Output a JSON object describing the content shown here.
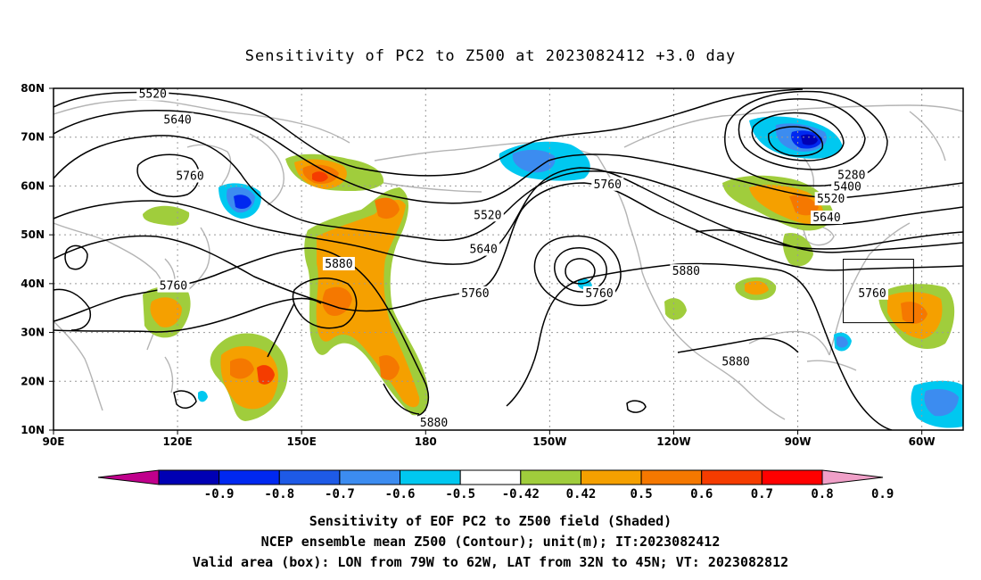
{
  "title": "Sensitivity of PC2 to Z500 at 2023082412 +3.0 day",
  "map": {
    "lon_range": [
      "90E",
      "50W"
    ],
    "lat_range": [
      "10N",
      "80N"
    ],
    "grid": "dotted",
    "lat_labels": [
      "80N",
      "70N",
      "60N",
      "50N",
      "40N",
      "30N",
      "20N",
      "10N"
    ],
    "lon_labels": [
      "90E",
      "120E",
      "150E",
      "180",
      "150W",
      "120W",
      "90W",
      "60W"
    ],
    "contour_labels": [
      {
        "text": "5520",
        "lon": 114,
        "lat": 78.8
      },
      {
        "text": "5640",
        "lon": 120,
        "lat": 73.5
      },
      {
        "text": "5760",
        "lon": 123,
        "lat": 62.0
      },
      {
        "text": "5760",
        "lon": 119,
        "lat": 39.5
      },
      {
        "text": "5880",
        "lon": 159,
        "lat": 44.0
      },
      {
        "text": "5520",
        "lon": 195,
        "lat": 54.0
      },
      {
        "text": "5640",
        "lon": 194,
        "lat": 47.0
      },
      {
        "text": "5760",
        "lon": 192,
        "lat": 38.0
      },
      {
        "text": "5760",
        "lon": 224,
        "lat": 60.3
      },
      {
        "text": "5760",
        "lon": 222,
        "lat": 38.0
      },
      {
        "text": "5880",
        "lon": 243,
        "lat": 42.5
      },
      {
        "text": "5880",
        "lon": 255,
        "lat": 24.0
      },
      {
        "text": "5880",
        "lon": 182,
        "lat": 11.5
      },
      {
        "text": "5280",
        "lon": 283,
        "lat": 62.2
      },
      {
        "text": "5400",
        "lon": 282,
        "lat": 59.8
      },
      {
        "text": "5520",
        "lon": 278,
        "lat": 57.3
      },
      {
        "text": "5640",
        "lon": 277,
        "lat": 53.5
      },
      {
        "text": "5760",
        "lon": 288,
        "lat": 38.0
      }
    ],
    "valid_box": {
      "lon_min": -79,
      "lon_max": -62,
      "lat_min": 32,
      "lat_max": 45
    }
  },
  "colorbar": {
    "labels": [
      "-0.9",
      "-0.8",
      "-0.7",
      "-0.6",
      "-0.5",
      "-0.42",
      "0.42",
      "0.5",
      "0.6",
      "0.7",
      "0.8",
      "0.9"
    ],
    "colors": [
      "#c0008c",
      "#0000b4",
      "#0028f0",
      "#1e5ae6",
      "#3c8cf0",
      "#00c8f0",
      "#ffffff",
      "#a0cd3c",
      "#f5a000",
      "#f57800",
      "#f53c00",
      "#ff0000",
      "#f0a0c8"
    ]
  },
  "footer": {
    "line1": "Sensitivity of EOF PC2 to Z500 field (Shaded)",
    "line2": "NCEP ensemble mean Z500 (Contour); unit(m); IT:2023082412",
    "line3": "Valid area (box): LON from 79W to 62W, LAT from 32N to 45N; VT: 2023082812"
  }
}
